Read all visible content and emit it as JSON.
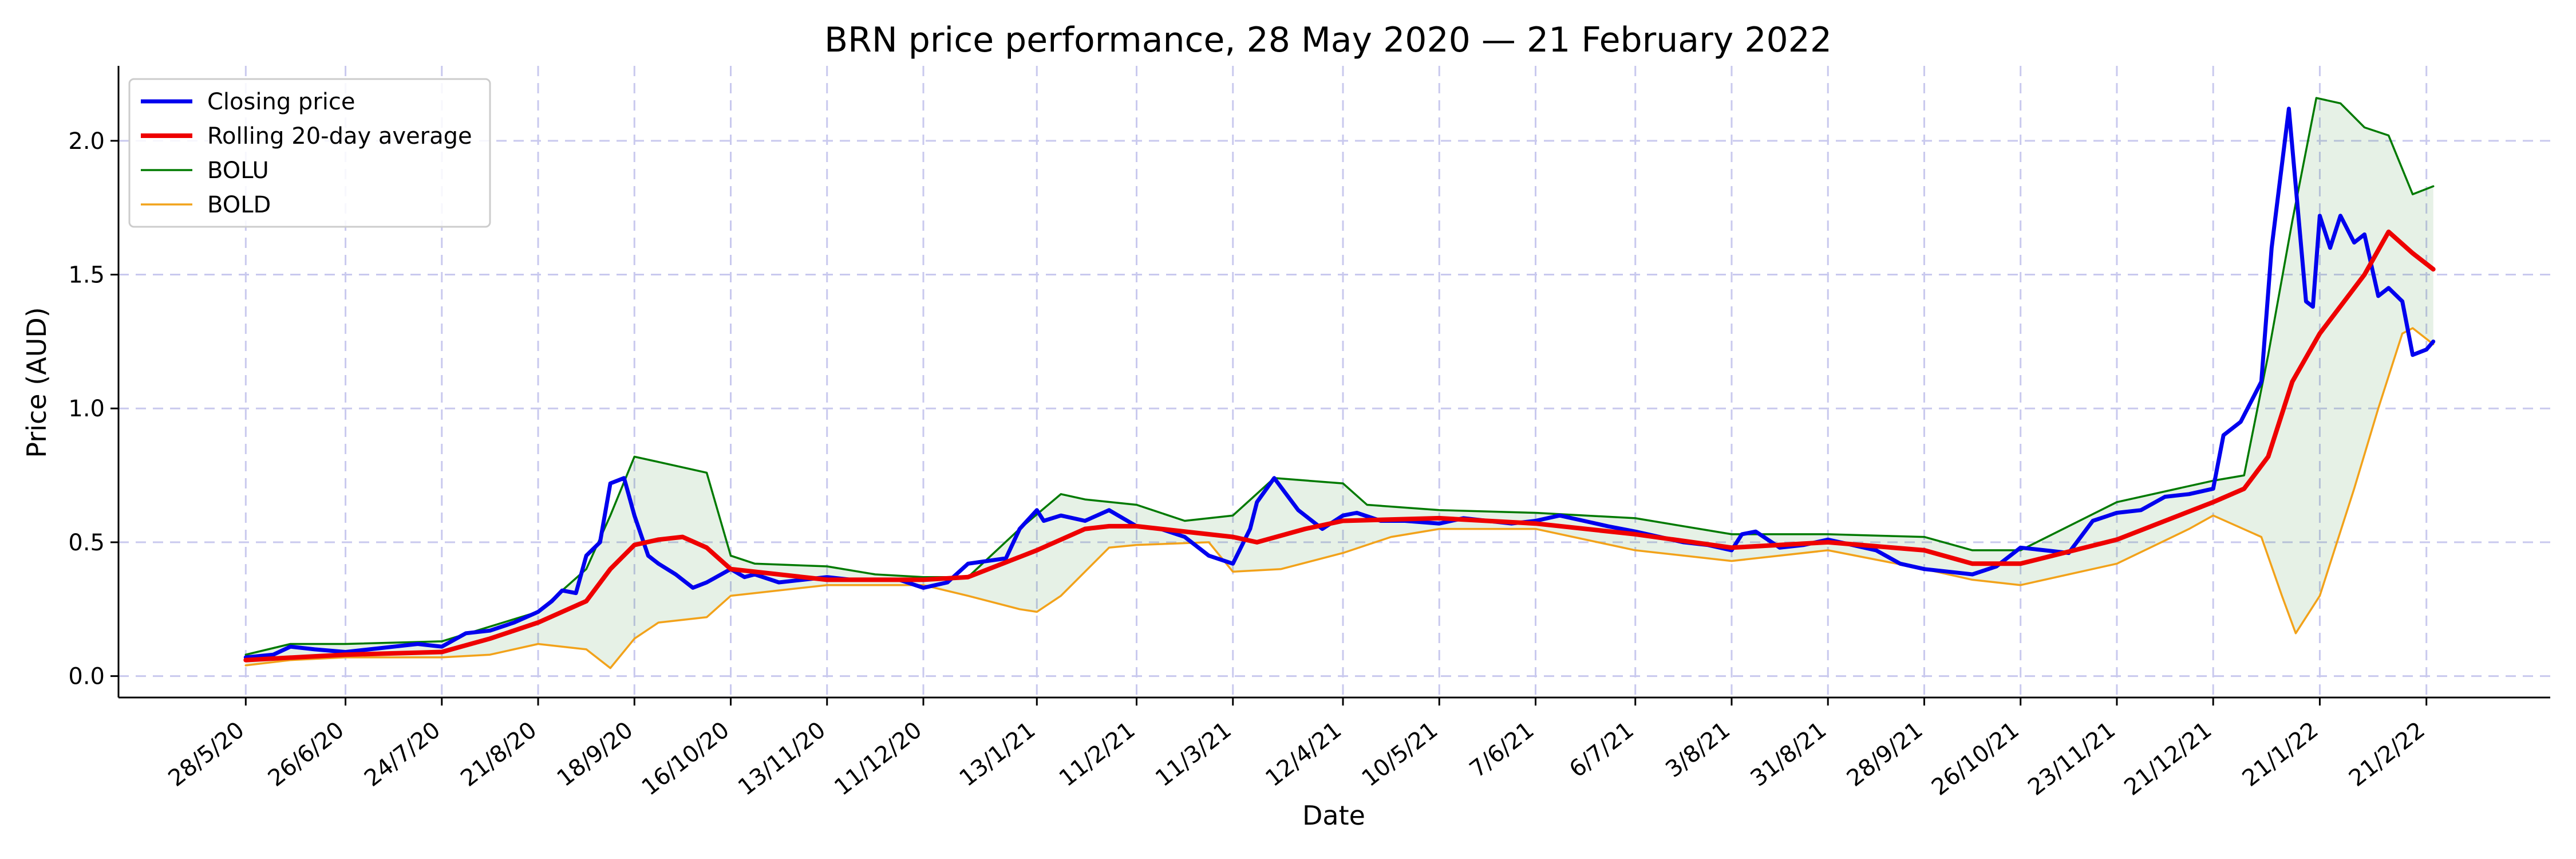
{
  "chart_data": {
    "type": "line",
    "title": "BRN price performance, 28 May 2020 — 21 February 2022",
    "xlabel": "Date",
    "ylabel": "Price (AUD)",
    "ylim": [
      -0.08,
      2.28
    ],
    "yticks": [
      0.0,
      0.5,
      1.0,
      1.5,
      2.0
    ],
    "ytick_labels": [
      "0.0",
      "0.5",
      "1.0",
      "1.5",
      "2.0"
    ],
    "xlim": [
      "2020-04-21",
      "2022-03-29"
    ],
    "xticks": [
      "2020-05-28",
      "2020-06-26",
      "2020-07-24",
      "2020-08-21",
      "2020-09-18",
      "2020-10-16",
      "2020-11-13",
      "2020-12-11",
      "2021-01-13",
      "2021-02-11",
      "2021-03-11",
      "2021-04-12",
      "2021-05-10",
      "2021-06-07",
      "2021-07-06",
      "2021-08-03",
      "2021-08-31",
      "2021-09-28",
      "2021-10-26",
      "2021-11-23",
      "2021-12-21",
      "2022-01-21",
      "2022-02-21"
    ],
    "xtick_labels": [
      "28/5/20",
      "26/6/20",
      "24/7/20",
      "21/8/20",
      "18/9/20",
      "16/10/20",
      "13/11/20",
      "11/12/20",
      "13/1/21",
      "11/2/21",
      "11/3/21",
      "12/4/21",
      "10/5/21",
      "7/6/21",
      "6/7/21",
      "3/8/21",
      "31/8/21",
      "28/9/21",
      "26/10/21",
      "23/11/21",
      "21/12/21",
      "21/1/22",
      "21/2/22"
    ],
    "grid": true,
    "legend_position": "top-left",
    "band_fill_color": "#2e8b2e",
    "series": [
      {
        "name": "Closing price",
        "color": "#0000ee",
        "x": [
          "2020-05-28",
          "2020-06-05",
          "2020-06-10",
          "2020-06-17",
          "2020-06-26",
          "2020-07-03",
          "2020-07-10",
          "2020-07-17",
          "2020-07-24",
          "2020-07-31",
          "2020-08-07",
          "2020-08-14",
          "2020-08-21",
          "2020-08-25",
          "2020-08-28",
          "2020-09-01",
          "2020-09-04",
          "2020-09-08",
          "2020-09-11",
          "2020-09-15",
          "2020-09-18",
          "2020-09-22",
          "2020-09-25",
          "2020-09-30",
          "2020-10-05",
          "2020-10-09",
          "2020-10-16",
          "2020-10-20",
          "2020-10-23",
          "2020-10-30",
          "2020-11-06",
          "2020-11-13",
          "2020-11-20",
          "2020-11-27",
          "2020-12-04",
          "2020-12-11",
          "2020-12-18",
          "2020-12-24",
          "2021-01-04",
          "2021-01-08",
          "2021-01-13",
          "2021-01-15",
          "2021-01-20",
          "2021-01-27",
          "2021-02-03",
          "2021-02-11",
          "2021-02-18",
          "2021-02-25",
          "2021-03-04",
          "2021-03-11",
          "2021-03-16",
          "2021-03-18",
          "2021-03-23",
          "2021-03-30",
          "2021-04-06",
          "2021-04-12",
          "2021-04-16",
          "2021-04-23",
          "2021-04-30",
          "2021-05-10",
          "2021-05-17",
          "2021-05-24",
          "2021-05-31",
          "2021-06-07",
          "2021-06-14",
          "2021-06-21",
          "2021-06-28",
          "2021-07-06",
          "2021-07-13",
          "2021-07-20",
          "2021-07-27",
          "2021-08-03",
          "2021-08-06",
          "2021-08-10",
          "2021-08-17",
          "2021-08-24",
          "2021-08-31",
          "2021-09-07",
          "2021-09-14",
          "2021-09-21",
          "2021-09-28",
          "2021-10-05",
          "2021-10-12",
          "2021-10-19",
          "2021-10-26",
          "2021-11-02",
          "2021-11-09",
          "2021-11-16",
          "2021-11-23",
          "2021-11-30",
          "2021-12-07",
          "2021-12-14",
          "2021-12-21",
          "2021-12-24",
          "2021-12-29",
          "2022-01-04",
          "2022-01-07",
          "2022-01-12",
          "2022-01-17",
          "2022-01-19",
          "2022-01-21",
          "2022-01-24",
          "2022-01-27",
          "2022-01-31",
          "2022-02-03",
          "2022-02-07",
          "2022-02-10",
          "2022-02-14",
          "2022-02-17",
          "2022-02-21",
          "2022-02-23"
        ],
        "y": [
          0.07,
          0.08,
          0.11,
          0.1,
          0.09,
          0.1,
          0.11,
          0.12,
          0.11,
          0.16,
          0.17,
          0.2,
          0.24,
          0.28,
          0.32,
          0.31,
          0.45,
          0.5,
          0.72,
          0.74,
          0.6,
          0.45,
          0.42,
          0.38,
          0.33,
          0.35,
          0.4,
          0.37,
          0.38,
          0.35,
          0.36,
          0.37,
          0.36,
          0.36,
          0.36,
          0.33,
          0.35,
          0.42,
          0.44,
          0.55,
          0.62,
          0.58,
          0.6,
          0.58,
          0.62,
          0.56,
          0.55,
          0.52,
          0.45,
          0.42,
          0.55,
          0.65,
          0.74,
          0.62,
          0.55,
          0.6,
          0.61,
          0.58,
          0.58,
          0.57,
          0.59,
          0.58,
          0.57,
          0.58,
          0.6,
          0.58,
          0.56,
          0.54,
          0.52,
          0.5,
          0.49,
          0.47,
          0.53,
          0.54,
          0.48,
          0.49,
          0.51,
          0.49,
          0.47,
          0.42,
          0.4,
          0.39,
          0.38,
          0.41,
          0.48,
          0.47,
          0.46,
          0.58,
          0.61,
          0.62,
          0.67,
          0.68,
          0.7,
          0.9,
          0.95,
          1.1,
          1.6,
          2.12,
          1.4,
          1.38,
          1.72,
          1.6,
          1.72,
          1.62,
          1.65,
          1.42,
          1.45,
          1.4,
          1.2,
          1.22,
          1.25
        ]
      },
      {
        "name": "Rolling 20-day average",
        "color": "#ee0000",
        "x": [
          "2020-05-28",
          "2020-06-26",
          "2020-07-24",
          "2020-08-07",
          "2020-08-21",
          "2020-09-04",
          "2020-09-11",
          "2020-09-18",
          "2020-09-25",
          "2020-10-02",
          "2020-10-09",
          "2020-10-16",
          "2020-11-13",
          "2020-12-11",
          "2020-12-24",
          "2021-01-13",
          "2021-01-27",
          "2021-02-03",
          "2021-02-11",
          "2021-03-11",
          "2021-03-18",
          "2021-04-01",
          "2021-04-12",
          "2021-05-10",
          "2021-06-07",
          "2021-07-06",
          "2021-08-03",
          "2021-08-31",
          "2021-09-28",
          "2021-10-12",
          "2021-10-26",
          "2021-11-23",
          "2021-12-21",
          "2021-12-30",
          "2022-01-06",
          "2022-01-13",
          "2022-01-21",
          "2022-02-03",
          "2022-02-10",
          "2022-02-17",
          "2022-02-23"
        ],
        "y": [
          0.06,
          0.08,
          0.09,
          0.14,
          0.2,
          0.28,
          0.4,
          0.49,
          0.51,
          0.52,
          0.48,
          0.4,
          0.36,
          0.36,
          0.37,
          0.47,
          0.55,
          0.56,
          0.56,
          0.52,
          0.5,
          0.55,
          0.58,
          0.59,
          0.57,
          0.53,
          0.48,
          0.5,
          0.47,
          0.42,
          0.42,
          0.51,
          0.65,
          0.7,
          0.82,
          1.1,
          1.28,
          1.5,
          1.66,
          1.58,
          1.52
        ]
      },
      {
        "name": "BOLU",
        "color": "#007a00",
        "x": [
          "2020-05-28",
          "2020-06-10",
          "2020-06-26",
          "2020-07-24",
          "2020-08-21",
          "2020-09-04",
          "2020-09-11",
          "2020-09-18",
          "2020-09-25",
          "2020-10-02",
          "2020-10-09",
          "2020-10-16",
          "2020-10-23",
          "2020-11-13",
          "2020-11-27",
          "2020-12-11",
          "2020-12-24",
          "2021-01-08",
          "2021-01-20",
          "2021-01-27",
          "2021-02-11",
          "2021-02-25",
          "2021-03-11",
          "2021-03-23",
          "2021-04-12",
          "2021-04-19",
          "2021-05-10",
          "2021-06-07",
          "2021-07-06",
          "2021-08-03",
          "2021-08-31",
          "2021-09-28",
          "2021-10-12",
          "2021-10-26",
          "2021-11-23",
          "2021-12-21",
          "2021-12-30",
          "2022-01-06",
          "2022-01-13",
          "2022-01-20",
          "2022-01-27",
          "2022-02-03",
          "2022-02-10",
          "2022-02-17",
          "2022-02-23"
        ],
        "y": [
          0.08,
          0.12,
          0.12,
          0.13,
          0.24,
          0.4,
          0.6,
          0.82,
          0.8,
          0.78,
          0.76,
          0.45,
          0.42,
          0.41,
          0.38,
          0.37,
          0.37,
          0.55,
          0.68,
          0.66,
          0.64,
          0.58,
          0.6,
          0.74,
          0.72,
          0.64,
          0.62,
          0.61,
          0.59,
          0.53,
          0.53,
          0.52,
          0.47,
          0.47,
          0.65,
          0.73,
          0.75,
          1.2,
          1.7,
          2.16,
          2.14,
          2.05,
          2.02,
          1.8,
          1.83
        ]
      },
      {
        "name": "BOLD",
        "color": "#f2a21a",
        "x": [
          "2020-05-28",
          "2020-06-10",
          "2020-06-26",
          "2020-07-24",
          "2020-08-07",
          "2020-08-21",
          "2020-09-04",
          "2020-09-11",
          "2020-09-18",
          "2020-09-25",
          "2020-10-09",
          "2020-10-16",
          "2020-11-13",
          "2020-11-27",
          "2020-12-11",
          "2020-12-24",
          "2021-01-08",
          "2021-01-13",
          "2021-01-20",
          "2021-02-03",
          "2021-02-11",
          "2021-03-04",
          "2021-03-11",
          "2021-03-25",
          "2021-04-12",
          "2021-04-26",
          "2021-05-10",
          "2021-06-07",
          "2021-07-06",
          "2021-08-03",
          "2021-08-31",
          "2021-09-28",
          "2021-10-12",
          "2021-10-26",
          "2021-11-23",
          "2021-12-14",
          "2021-12-21",
          "2022-01-04",
          "2022-01-10",
          "2022-01-14",
          "2022-01-21",
          "2022-01-31",
          "2022-02-07",
          "2022-02-14",
          "2022-02-17",
          "2022-02-23"
        ],
        "y": [
          0.04,
          0.06,
          0.07,
          0.07,
          0.08,
          0.12,
          0.1,
          0.03,
          0.14,
          0.2,
          0.22,
          0.3,
          0.34,
          0.34,
          0.34,
          0.3,
          0.25,
          0.24,
          0.3,
          0.48,
          0.49,
          0.5,
          0.39,
          0.4,
          0.46,
          0.52,
          0.55,
          0.55,
          0.47,
          0.43,
          0.47,
          0.4,
          0.36,
          0.34,
          0.42,
          0.55,
          0.6,
          0.52,
          0.3,
          0.16,
          0.3,
          0.7,
          1.0,
          1.28,
          1.3,
          1.24
        ]
      }
    ]
  }
}
